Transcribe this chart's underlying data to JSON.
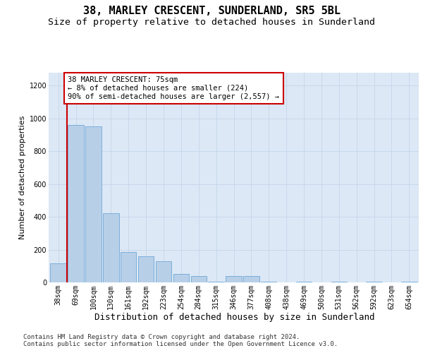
{
  "title1": "38, MARLEY CRESCENT, SUNDERLAND, SR5 5BL",
  "title2": "Size of property relative to detached houses in Sunderland",
  "xlabel": "Distribution of detached houses by size in Sunderland",
  "ylabel": "Number of detached properties",
  "categories": [
    "38sqm",
    "69sqm",
    "100sqm",
    "130sqm",
    "161sqm",
    "192sqm",
    "223sqm",
    "254sqm",
    "284sqm",
    "315sqm",
    "346sqm",
    "377sqm",
    "408sqm",
    "438sqm",
    "469sqm",
    "500sqm",
    "531sqm",
    "562sqm",
    "592sqm",
    "623sqm",
    "654sqm"
  ],
  "values": [
    115,
    960,
    950,
    420,
    185,
    160,
    130,
    50,
    40,
    5,
    40,
    40,
    5,
    0,
    5,
    0,
    5,
    0,
    5,
    0,
    5
  ],
  "bar_color": "#b8cfe8",
  "bar_edge_color": "#6fa8d8",
  "vline_color": "#cc0000",
  "vline_x": 0.5,
  "annotation_text": "38 MARLEY CRESCENT: 75sqm\n← 8% of detached houses are smaller (224)\n90% of semi-detached houses are larger (2,557) →",
  "annotation_box_color": "#ffffff",
  "annotation_box_edge": "#cc0000",
  "ylim": [
    0,
    1280
  ],
  "yticks": [
    0,
    200,
    400,
    600,
    800,
    1000,
    1200
  ],
  "grid_color": "#c8d8ec",
  "bg_color": "#dce8f5",
  "footer": "Contains HM Land Registry data © Crown copyright and database right 2024.\nContains public sector information licensed under the Open Government Licence v3.0.",
  "title1_fontsize": 11,
  "title2_fontsize": 9.5,
  "xlabel_fontsize": 9,
  "ylabel_fontsize": 8,
  "tick_fontsize": 7,
  "footer_fontsize": 6.5,
  "ann_fontsize": 7.5
}
